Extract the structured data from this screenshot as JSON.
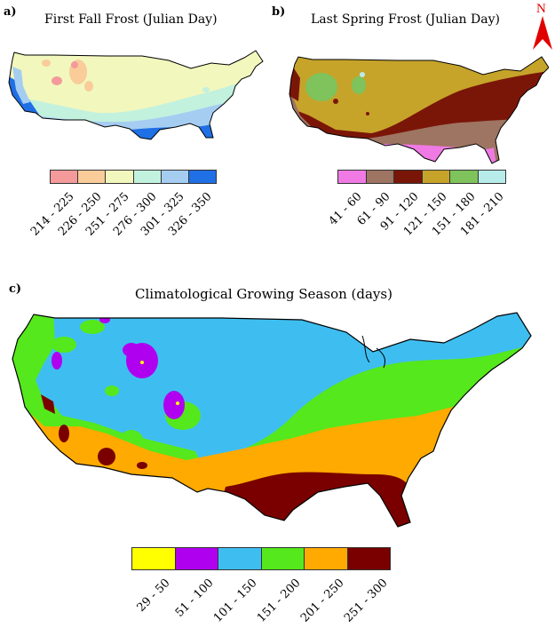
{
  "panels": [
    {
      "letter": "a)",
      "title": "First Fall Frost (Julian Day)",
      "legend": [
        {
          "label": "214 - 225",
          "color": "#f59a9a"
        },
        {
          "label": "226 - 250",
          "color": "#f9cc9a"
        },
        {
          "label": "251 - 275",
          "color": "#f2f7bd"
        },
        {
          "label": "276 - 300",
          "color": "#c2f1de"
        },
        {
          "label": "301 - 325",
          "color": "#a5cdf2"
        },
        {
          "label": "326 - 350",
          "color": "#1f6fe5"
        }
      ]
    },
    {
      "letter": "b)",
      "title": "Last Spring Frost (Julian Day)",
      "legend": [
        {
          "label": "41 - 60",
          "color": "#f07ae4"
        },
        {
          "label": "61 - 90",
          "color": "#9e7462"
        },
        {
          "label": "91 - 120",
          "color": "#7a1608"
        },
        {
          "label": "121 - 150",
          "color": "#c6a42a"
        },
        {
          "label": "151 - 180",
          "color": "#7ec35c"
        },
        {
          "label": "181 - 210",
          "color": "#b8ecea"
        }
      ]
    },
    {
      "letter": "c)",
      "title": "Climatological Growing Season (days)",
      "legend": [
        {
          "label": "29 - 50",
          "color": "#ffff00"
        },
        {
          "label": "51 - 100",
          "color": "#b000f0"
        },
        {
          "label": "101 - 150",
          "color": "#3ebef0"
        },
        {
          "label": "151 - 200",
          "color": "#55e81c"
        },
        {
          "label": "201 - 250",
          "color": "#ffaa00"
        },
        {
          "label": "251 - 300",
          "color": "#7a0000"
        }
      ]
    }
  ],
  "north_arrow": {
    "label": "N",
    "color": "#e00000"
  }
}
